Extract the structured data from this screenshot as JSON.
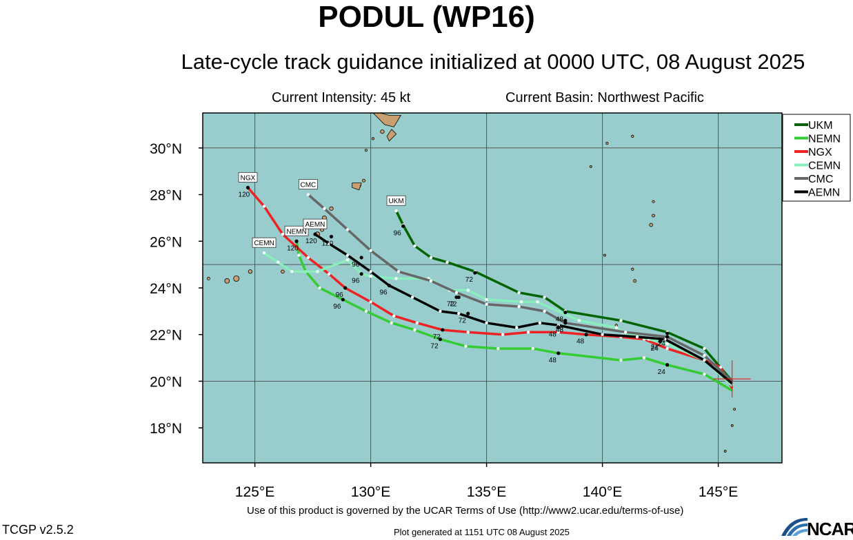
{
  "title": "PODUL (WP16)",
  "subtitle": "Late-cycle track guidance initialized at 0000 UTC, 08 August 2025",
  "intensity": "Current Intensity: 45 kt",
  "basin": "Current Basin: Northwest Pacific",
  "terms": "Use of this product is governed by the UCAR Terms of Use (http://www2.ucar.edu/terms-of-use)",
  "version": "TCGP v2.5.2",
  "generated": "Plot generated at 1151 UTC   08 August 2025",
  "logo": "NCAR",
  "chart_data": {
    "type": "line",
    "xlim": [
      122.75,
      147.75
    ],
    "ylim": [
      16.5,
      31.5
    ],
    "x_ticks": [
      125,
      130,
      135,
      140,
      145
    ],
    "x_tick_labels": [
      "125°E",
      "130°E",
      "135°E",
      "140°E",
      "145°E"
    ],
    "y_ticks": [
      18,
      20,
      22,
      24,
      26,
      28,
      30
    ],
    "y_tick_labels": [
      "18°N",
      "20°N",
      "22°N",
      "24°N",
      "26°N",
      "28°N",
      "30°N"
    ],
    "gridlines_lon": [
      125,
      130,
      135,
      140,
      145
    ],
    "gridlines_lat": [
      20,
      25,
      30
    ],
    "legend_position": "top-right",
    "current_position": {
      "lon": 145.6,
      "lat": 20.1
    },
    "colors": {
      "ocean": "#99CCCC",
      "land": "#C8A070",
      "grid": "#555555"
    },
    "series": [
      {
        "name": "UKM",
        "color": "#006400",
        "points": [
          [
            145.6,
            20.0
          ],
          [
            144.4,
            21.4
          ],
          [
            142.8,
            22.1
          ],
          [
            140.8,
            22.6
          ],
          [
            138.4,
            23.0
          ],
          [
            137.5,
            23.6
          ],
          [
            136.4,
            23.8
          ],
          [
            134.5,
            24.7
          ],
          [
            133.3,
            25.1
          ],
          [
            132.6,
            25.3
          ],
          [
            131.9,
            25.8
          ],
          [
            131.4,
            26.7
          ],
          [
            131.1,
            27.3
          ]
        ],
        "hour_labels": [
          {
            "text": "24",
            "lon": 142.8,
            "lat": 22.05
          },
          {
            "text": "48",
            "lon": 138.4,
            "lat": 22.95
          },
          {
            "text": "72",
            "lon": 134.5,
            "lat": 24.65
          },
          {
            "text": "96",
            "lon": 131.4,
            "lat": 26.65
          }
        ],
        "marker_lon": 131.1,
        "marker_lat": 27.3,
        "marker_label": "UKM"
      },
      {
        "name": "NEMN",
        "color": "#33CC33",
        "points": [
          [
            145.6,
            19.6
          ],
          [
            144.4,
            20.3
          ],
          [
            142.8,
            20.7
          ],
          [
            141.8,
            21.0
          ],
          [
            140.8,
            20.9
          ],
          [
            138.1,
            21.2
          ],
          [
            137.0,
            21.4
          ],
          [
            135.5,
            21.4
          ],
          [
            134.1,
            21.5
          ],
          [
            133.0,
            21.8
          ],
          [
            131.9,
            22.2
          ],
          [
            130.9,
            22.5
          ],
          [
            129.8,
            23.0
          ],
          [
            128.8,
            23.5
          ],
          [
            127.8,
            24.0
          ],
          [
            127.2,
            24.7
          ],
          [
            126.9,
            25.4
          ],
          [
            126.8,
            26.0
          ]
        ],
        "hour_labels": [
          {
            "text": "24",
            "lon": 142.8,
            "lat": 20.7
          },
          {
            "text": "48",
            "lon": 138.1,
            "lat": 21.2
          },
          {
            "text": "72",
            "lon": 133.0,
            "lat": 21.8
          },
          {
            "text": "96",
            "lon": 128.8,
            "lat": 23.5
          },
          {
            "text": "120",
            "lon": 126.8,
            "lat": 26.0
          }
        ],
        "marker_lon": 126.8,
        "marker_lat": 26.0,
        "marker_label": "NEMN"
      },
      {
        "name": "NGX",
        "color": "#EE2222",
        "points": [
          [
            145.6,
            19.7
          ],
          [
            145.1,
            20.6
          ],
          [
            144.4,
            20.9
          ],
          [
            142.8,
            21.4
          ],
          [
            141.8,
            21.8
          ],
          [
            140.8,
            21.9
          ],
          [
            139.3,
            22.0
          ],
          [
            138.1,
            22.1
          ],
          [
            136.8,
            22.1
          ],
          [
            135.7,
            22.0
          ],
          [
            134.2,
            22.1
          ],
          [
            133.1,
            22.2
          ],
          [
            132.0,
            22.5
          ],
          [
            131.0,
            22.8
          ],
          [
            130.0,
            23.4
          ],
          [
            128.9,
            24.0
          ],
          [
            128.2,
            24.6
          ],
          [
            127.3,
            25.3
          ],
          [
            126.2,
            26.3
          ],
          [
            125.4,
            27.5
          ],
          [
            124.7,
            28.3
          ]
        ],
        "hour_labels": [
          {
            "text": "24",
            "lon": 142.5,
            "lat": 21.7
          },
          {
            "text": "48",
            "lon": 139.3,
            "lat": 22.0
          },
          {
            "text": "72",
            "lon": 133.1,
            "lat": 22.2
          },
          {
            "text": "96",
            "lon": 128.9,
            "lat": 24.0
          },
          {
            "text": "120",
            "lon": 124.7,
            "lat": 28.3
          }
        ],
        "marker_lon": 124.7,
        "marker_lat": 28.3,
        "marker_label": "NGX"
      },
      {
        "name": "CEMN",
        "color": "#88EEBB",
        "points": [
          [
            145.6,
            19.8
          ],
          [
            144.4,
            20.9
          ],
          [
            142.8,
            21.6
          ],
          [
            142.0,
            21.8
          ],
          [
            140.9,
            22.1
          ],
          [
            140.6,
            22.3
          ],
          [
            139.0,
            22.6
          ],
          [
            137.2,
            23.4
          ],
          [
            136.5,
            23.4
          ],
          [
            135.0,
            23.5
          ],
          [
            134.2,
            23.9
          ],
          [
            133.4,
            23.9
          ],
          [
            132.5,
            24.4
          ],
          [
            131.1,
            24.4
          ],
          [
            130.0,
            24.5
          ],
          [
            129.6,
            24.6
          ],
          [
            129.0,
            25.2
          ],
          [
            127.7,
            24.7
          ],
          [
            126.6,
            24.7
          ],
          [
            126.0,
            25.1
          ],
          [
            125.4,
            25.5
          ]
        ],
        "hour_labels": [
          {
            "text": "48",
            "lon": 138.4,
            "lat": 22.6
          },
          {
            "text": "72",
            "lon": 133.8,
            "lat": 23.6
          },
          {
            "text": "96",
            "lon": 129.6,
            "lat": 24.6
          }
        ],
        "marker_lon": 125.4,
        "marker_lat": 25.5,
        "marker_label": "CEMN"
      },
      {
        "name": "CMC",
        "color": "#666666",
        "points": [
          [
            145.6,
            20.0
          ],
          [
            144.4,
            21.1
          ],
          [
            142.8,
            21.9
          ],
          [
            141.0,
            22.1
          ],
          [
            138.4,
            22.5
          ],
          [
            137.5,
            23.0
          ],
          [
            136.4,
            23.2
          ],
          [
            135.0,
            23.3
          ],
          [
            133.7,
            23.8
          ],
          [
            132.6,
            24.3
          ],
          [
            131.2,
            24.7
          ],
          [
            130.0,
            25.6
          ],
          [
            129.0,
            26.5
          ],
          [
            128.0,
            27.4
          ],
          [
            127.3,
            28.0
          ]
        ],
        "hour_labels": [
          {
            "text": "24",
            "lon": 142.8,
            "lat": 21.9
          },
          {
            "text": "48",
            "lon": 138.4,
            "lat": 22.5
          },
          {
            "text": "72",
            "lon": 133.7,
            "lat": 23.6
          },
          {
            "text": "96",
            "lon": 129.6,
            "lat": 25.3
          },
          {
            "text": "120",
            "lon": 128.3,
            "lat": 26.2
          }
        ],
        "marker_lon": 127.3,
        "marker_lat": 28.0,
        "marker_label": "CMC"
      },
      {
        "name": "AEMN",
        "color": "#000000",
        "points": [
          [
            145.6,
            19.9
          ],
          [
            144.4,
            20.9
          ],
          [
            142.7,
            21.8
          ],
          [
            141.5,
            21.9
          ],
          [
            140.0,
            22.0
          ],
          [
            138.1,
            22.4
          ],
          [
            137.3,
            22.5
          ],
          [
            136.3,
            22.3
          ],
          [
            135.0,
            22.5
          ],
          [
            133.8,
            22.9
          ],
          [
            133.0,
            23.0
          ],
          [
            131.8,
            23.6
          ],
          [
            130.8,
            24.1
          ],
          [
            130.0,
            24.7
          ],
          [
            129.0,
            25.4
          ],
          [
            128.2,
            25.9
          ],
          [
            127.6,
            26.3
          ]
        ],
        "hour_labels": [
          {
            "text": "24",
            "lon": 142.5,
            "lat": 21.75
          },
          {
            "text": "48",
            "lon": 138.1,
            "lat": 22.3
          },
          {
            "text": "72",
            "lon": 134.2,
            "lat": 22.9
          },
          {
            "text": "96",
            "lon": 130.8,
            "lat": 24.1
          },
          {
            "text": "120",
            "lon": 127.6,
            "lat": 26.3
          }
        ],
        "marker_lon": 127.6,
        "marker_lat": 26.3,
        "marker_label": "AEMN"
      }
    ]
  }
}
